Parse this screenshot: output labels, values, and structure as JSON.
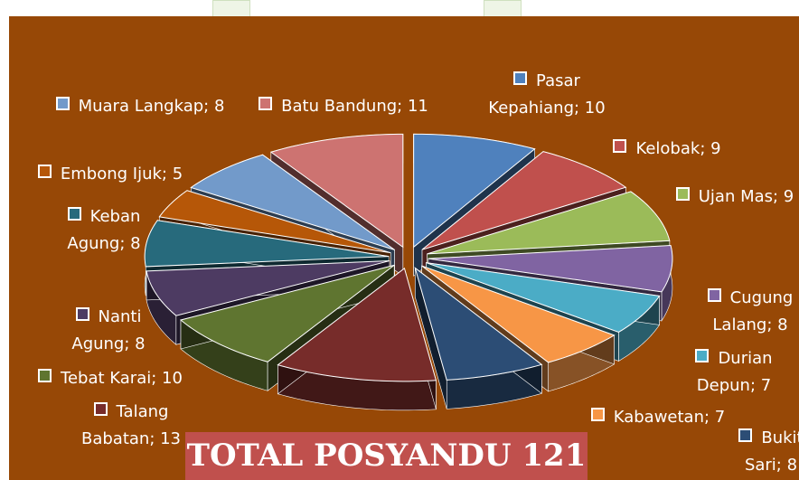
{
  "chart_data": {
    "type": "pie",
    "categories": [
      "Pasar Kepahiang",
      "Kelobak",
      "Ujan Mas",
      "Cugung Lalang",
      "Durian Depun",
      "Kabawetan",
      "Bukit Sari",
      "Talang Babatan",
      "Tebat Karai",
      "Nanti Agung",
      "Keban Agung",
      "Embong Ijuk",
      "Muara Langkap",
      "Batu Bandung"
    ],
    "values": [
      10,
      9,
      9,
      8,
      7,
      7,
      8,
      13,
      10,
      8,
      8,
      5,
      8,
      11
    ],
    "value_labels": [
      "Pasar Kepahiang; 10",
      "Kelobak; 9",
      "Ujan Mas; 9",
      "Cugung Lalang; 8",
      "Durian Depun; 7",
      "Kabawetan; 7",
      "Bukit Sari; 8",
      "Talang Babatan; 13",
      "Tebat Karai; 10",
      "Nanti Agung; 8",
      "Keban Agung; 8",
      "Embong Ijuk; 5",
      "Muara Langkap; 8",
      "Batu Bandung; 11"
    ],
    "colors": [
      "#4f81bd",
      "#c0504d",
      "#9bbb59",
      "#8064a2",
      "#4bacc6",
      "#f79646",
      "#2c4d75",
      "#772c2a",
      "#5f7530",
      "#4d3b62",
      "#276a7c",
      "#b65708",
      "#729aca",
      "#cd7371"
    ],
    "annotation": "TOTAL POSYANDU 121"
  }
}
